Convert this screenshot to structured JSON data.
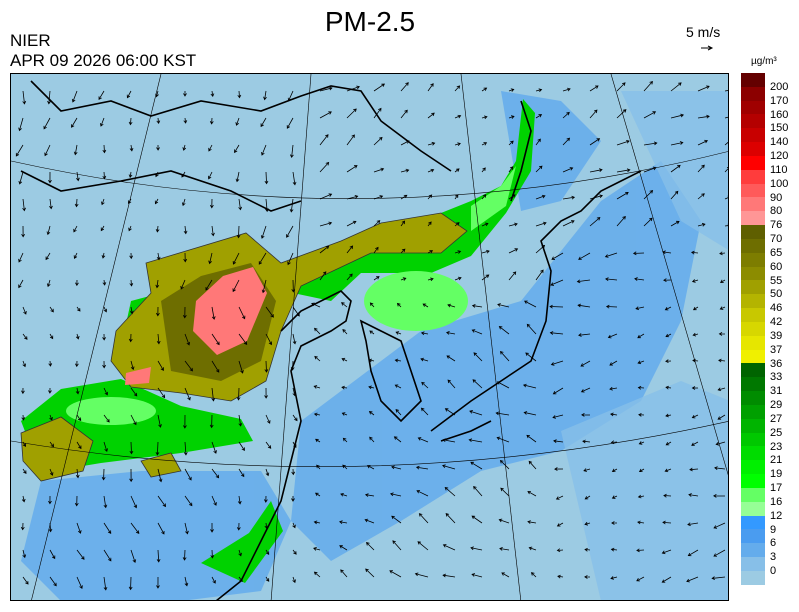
{
  "header": {
    "title": "PM-2.5",
    "org": "NIER",
    "timestamp": "APR 09 2026 06:00 KST",
    "vector_reference": "5 m/s",
    "unit": "µg/m³"
  },
  "map": {
    "region": "East Asia",
    "overlay": "PM-2.5 concentration with wind vectors",
    "background_color": "#9ccbe3"
  },
  "legend": {
    "labels": [
      "200",
      "170",
      "160",
      "150",
      "140",
      "120",
      "110",
      "100",
      "90",
      "80",
      "76",
      "70",
      "65",
      "60",
      "55",
      "50",
      "46",
      "42",
      "39",
      "37",
      "36",
      "33",
      "31",
      "29",
      "27",
      "25",
      "23",
      "21",
      "19",
      "17",
      "16",
      "12",
      "9",
      "6",
      "3",
      "0"
    ],
    "colors": [
      "#640000",
      "#8c0000",
      "#a00000",
      "#b40000",
      "#c80000",
      "#dc0000",
      "#ff0000",
      "#ff3c3c",
      "#ff5a5a",
      "#ff7878",
      "#ff9696",
      "#5f5f00",
      "#6e6e00",
      "#7d7d00",
      "#8c8c00",
      "#a0a000",
      "#b4b400",
      "#c8c800",
      "#d7d700",
      "#e6e600",
      "#f0f000",
      "#006400",
      "#007800",
      "#008c00",
      "#00a000",
      "#00b400",
      "#00c800",
      "#00dc00",
      "#00f000",
      "#00ff00",
      "#64ff64",
      "#96ff96",
      "#3399ff",
      "#4a9cf0",
      "#64acec",
      "#87bfe8",
      "#9ccbe3"
    ]
  }
}
